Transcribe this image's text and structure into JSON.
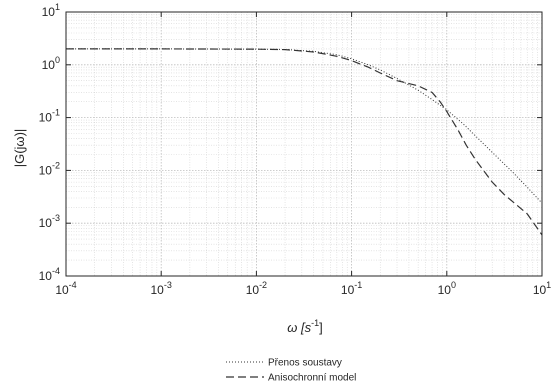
{
  "chart_data": {
    "type": "line",
    "title": "",
    "xlabel": {
      "base": "ω [s",
      "sup": "-1",
      "tail": "]"
    },
    "ylabel": "|G(jω)|",
    "x_scale": "log",
    "y_scale": "log",
    "xlim": [
      0.0001,
      10
    ],
    "ylim": [
      0.0001,
      10
    ],
    "grid": true,
    "minor_grid": true,
    "legend_position": "bottom-center",
    "x_ticks": [
      {
        "base": "10",
        "exp": "-4",
        "value": 0.0001
      },
      {
        "base": "10",
        "exp": "-3",
        "value": 0.001
      },
      {
        "base": "10",
        "exp": "-2",
        "value": 0.01
      },
      {
        "base": "10",
        "exp": "-1",
        "value": 0.1
      },
      {
        "base": "10",
        "exp": "0",
        "value": 1
      },
      {
        "base": "10",
        "exp": "1",
        "value": 10
      }
    ],
    "y_ticks": [
      {
        "base": "10",
        "exp": "1",
        "value": 10
      },
      {
        "base": "10",
        "exp": "0",
        "value": 1
      },
      {
        "base": "10",
        "exp": "-1",
        "value": 0.1
      },
      {
        "base": "10",
        "exp": "-2",
        "value": 0.01
      },
      {
        "base": "10",
        "exp": "-3",
        "value": 0.001
      },
      {
        "base": "10",
        "exp": "-4",
        "value": 0.0001
      }
    ],
    "series": [
      {
        "name": "Přenos soustavy",
        "style": "dotted",
        "color": "#333333",
        "x": [
          0.0001,
          0.001,
          0.01,
          0.02,
          0.04,
          0.07,
          0.1,
          0.15,
          0.2,
          0.3,
          0.5,
          0.7,
          1,
          1.5,
          2,
          3,
          5,
          7,
          10
        ],
        "y": [
          2.0,
          2.0,
          1.98,
          1.95,
          1.8,
          1.55,
          1.3,
          1.0,
          0.8,
          0.55,
          0.33,
          0.22,
          0.14,
          0.075,
          0.045,
          0.022,
          0.009,
          0.0048,
          0.0024
        ]
      },
      {
        "name": "Anisochronní model",
        "style": "dashed",
        "color": "#333333",
        "x": [
          0.0001,
          0.001,
          0.01,
          0.02,
          0.04,
          0.07,
          0.1,
          0.15,
          0.2,
          0.3,
          0.5,
          0.7,
          0.85,
          1,
          1.3,
          1.6,
          2,
          3,
          4,
          5,
          7,
          10
        ],
        "y": [
          2.0,
          2.0,
          1.98,
          1.94,
          1.75,
          1.45,
          1.2,
          0.9,
          0.7,
          0.5,
          0.4,
          0.3,
          0.2,
          0.13,
          0.06,
          0.03,
          0.016,
          0.006,
          0.0035,
          0.0025,
          0.0015,
          0.0006
        ]
      }
    ]
  }
}
